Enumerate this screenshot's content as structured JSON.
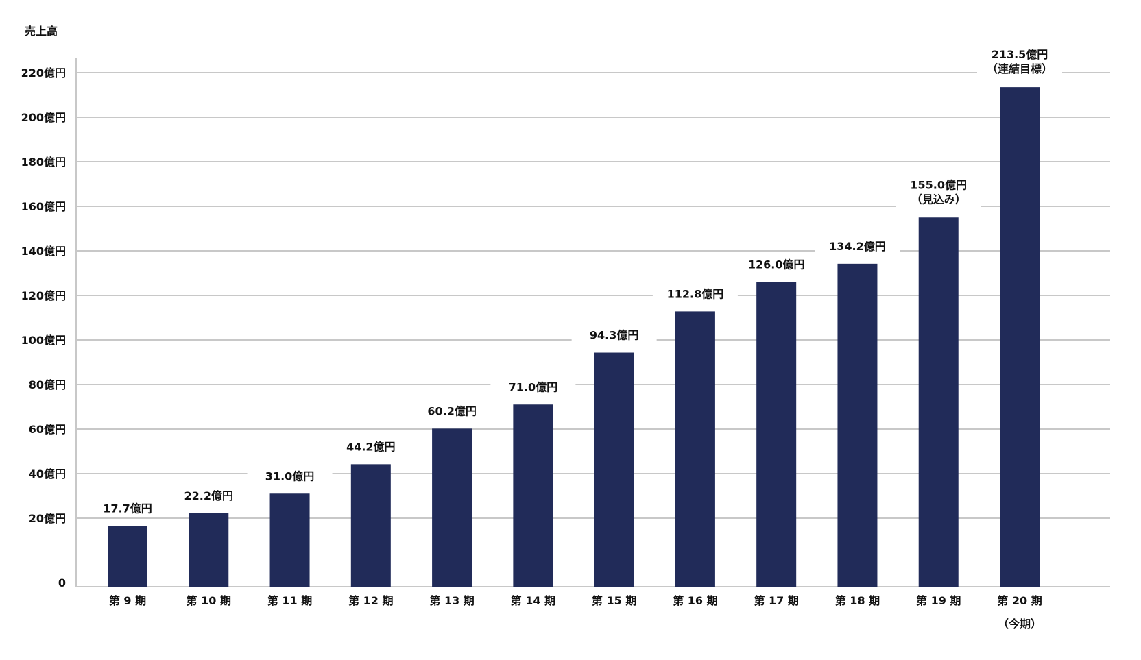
{
  "chart_data": {
    "type": "bar",
    "title": "売上高",
    "xlabel": "",
    "ylabel": "売上高",
    "ylim": [
      0,
      220
    ],
    "yticks": [
      0,
      20,
      40,
      60,
      80,
      100,
      120,
      140,
      160,
      180,
      200,
      220
    ],
    "ytick_labels": [
      "0",
      "20億円",
      "40億円",
      "60億円",
      "80億円",
      "100億円",
      "120億円",
      "140億円",
      "160億円",
      "180億円",
      "200億円",
      "220億円"
    ],
    "grid": true,
    "bar_color": "#212b59",
    "grid_color": "#c8c8c8",
    "categories": [
      "第 9 期",
      "第 10 期",
      "第 11 期",
      "第 12 期",
      "第 13 期",
      "第 14 期",
      "第 15 期",
      "第 16 期",
      "第 17 期",
      "第 18 期",
      "第 19 期",
      "第 20 期"
    ],
    "category_notes": [
      "",
      "",
      "",
      "",
      "",
      "",
      "",
      "",
      "",
      "",
      "",
      "（今期）"
    ],
    "values": [
      17.7,
      22.2,
      31.0,
      44.2,
      60.2,
      71.0,
      94.3,
      112.8,
      126.0,
      134.2,
      155.0,
      213.5
    ],
    "data_labels": [
      "17.7億円",
      "22.2億円",
      "31.0億円",
      "44.2億円",
      "60.2億円",
      "71.0億円",
      "94.3億円",
      "112.8億円",
      "126.0億円",
      "134.2億円",
      "155.0億円",
      "213.5億円"
    ],
    "data_label_notes": [
      "",
      "",
      "",
      "",
      "",
      "",
      "",
      "",
      "",
      "",
      "（見込み）",
      "（連結目標）"
    ]
  }
}
